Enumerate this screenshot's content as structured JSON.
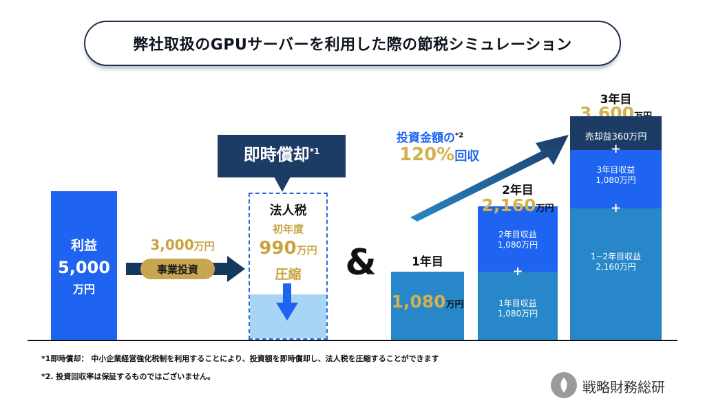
{
  "title": "弊社取扱のGPUサーバーを利用した際の節税シミュレーション",
  "profit": {
    "label": "利益",
    "value": "5,000",
    "unit": "万円"
  },
  "investment": {
    "amount": "3,000",
    "unit": "万円",
    "label": "事業投資"
  },
  "depreciation": {
    "label": "即時償却",
    "note_mark": "*1"
  },
  "tax": {
    "title": "法人税",
    "subtitle": "初年度",
    "amount": "990",
    "unit": "万円",
    "action": "圧縮"
  },
  "ampersand": "&",
  "recovery": {
    "line1": "投資金額の",
    "note_mark": "*2",
    "percent": "120%",
    "suffix": "回収"
  },
  "years": {
    "y1": {
      "label": "1年目",
      "value": "1,080",
      "unit": "万円"
    },
    "y2": {
      "label": "2年目",
      "value": "2,160",
      "unit": "万円",
      "top_line1": "2年目収益",
      "top_line2": "1,080万円",
      "bot_line1": "1年目収益",
      "bot_line2": "1,080万円",
      "plus": "+"
    },
    "y3": {
      "label": "3年目",
      "value": "3,600",
      "unit": "万円",
      "sale": "売却益360万円",
      "mid_line1": "3年目収益",
      "mid_line2": "1,080万円",
      "bot_line1": "1~2年目収益",
      "bot_line2": "2,160万円",
      "plus": "+"
    }
  },
  "notes": {
    "n1": "*1即時償却： 中小企業経営強化税制を利用することにより、投資額を即時償却し、法人税を圧縮することができます",
    "n2": "*2. 投資回収率は保証するものではございません。"
  },
  "logo": {
    "text": "戦略財務総研"
  },
  "colors": {
    "navy": "#1c3c66",
    "blue": "#1e64f0",
    "mid_blue": "#2787c8",
    "light_blue": "#a8d4f6",
    "gold": "#c8a33e"
  }
}
